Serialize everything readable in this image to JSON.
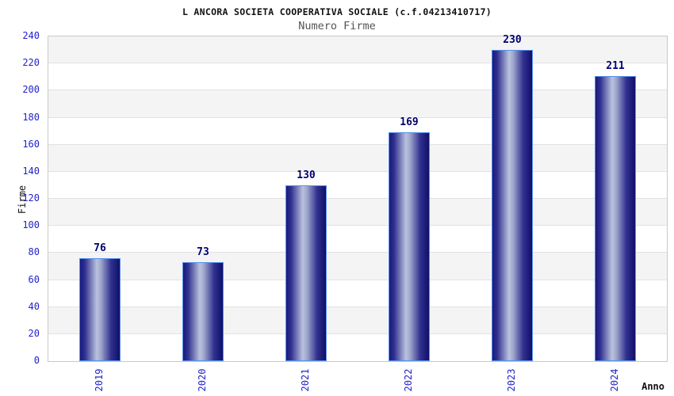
{
  "chart_data": {
    "type": "bar",
    "title": "L ANCORA SOCIETA COOPERATIVA SOCIALE (c.f.04213410717)",
    "subtitle": "Numero Firme",
    "xlabel": "Anno",
    "ylabel": "Firme",
    "categories": [
      "2019",
      "2020",
      "2021",
      "2022",
      "2023",
      "2024"
    ],
    "values": [
      76,
      73,
      130,
      169,
      230,
      211
    ],
    "ylim": [
      0,
      240
    ],
    "ytick_step": 20,
    "grid": true,
    "legend_position": "none",
    "colors": {
      "bar_dark": "#1a1a7c",
      "bar_mid": "#30308f",
      "bar_light": "#bac2de",
      "bar_edge_dark": "#101068",
      "bar_border": "#5590ee",
      "tick_label_blue": "#2222cc",
      "value_label_navy": "#000070",
      "band_gray": "#f4f4f4",
      "gridline_gray": "#e2e2e2",
      "plot_border_gray": "#c9c9c9"
    }
  }
}
